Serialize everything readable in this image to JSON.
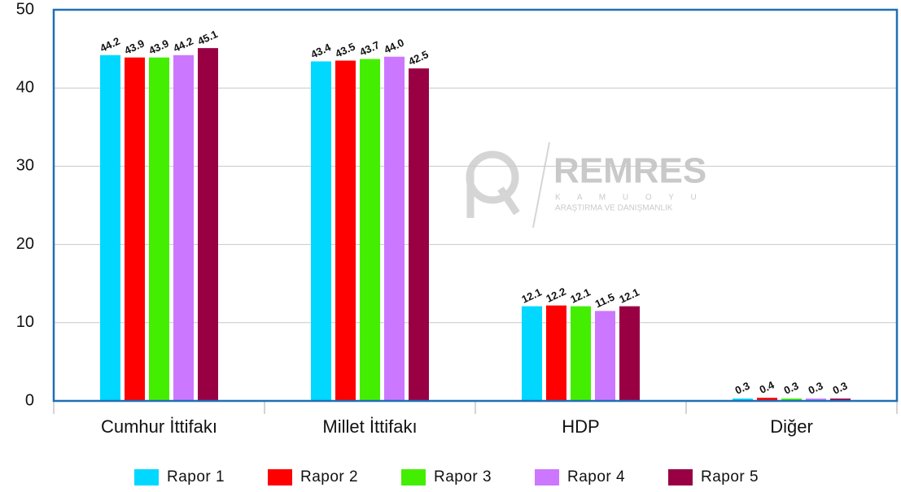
{
  "chart_data": {
    "type": "bar",
    "categories": [
      "Cumhur İttifakı",
      "Millet İttifakı",
      "HDP",
      "Diğer"
    ],
    "series": [
      {
        "name": "Rapor 1",
        "color": "#00d8ff",
        "values": [
          44.2,
          43.4,
          12.1,
          0.3
        ],
        "value_labels": [
          "44.2",
          "43.4",
          "12.1",
          "0.3"
        ]
      },
      {
        "name": "Rapor 2",
        "color": "#ff0000",
        "values": [
          43.9,
          43.5,
          12.2,
          0.4
        ],
        "value_labels": [
          "43.9",
          "43.5",
          "12.2",
          "0.4"
        ]
      },
      {
        "name": "Rapor 3",
        "color": "#44ee00",
        "values": [
          43.9,
          43.7,
          12.1,
          0.3
        ],
        "value_labels": [
          "43.9",
          "43.7",
          "12.1",
          "0.3"
        ]
      },
      {
        "name": "Rapor 4",
        "color": "#cc77ff",
        "values": [
          44.2,
          44.0,
          11.5,
          0.3
        ],
        "value_labels": [
          "44.2",
          "44.0",
          "11.5",
          "0.3"
        ]
      },
      {
        "name": "Rapor 5",
        "color": "#990044",
        "values": [
          45.1,
          42.5,
          12.1,
          0.3
        ],
        "value_labels": [
          "45.1",
          "42.5",
          "12.1",
          "0.3"
        ]
      }
    ],
    "ylim": [
      0,
      50
    ],
    "yticks": [
      0,
      10,
      20,
      30,
      40,
      50
    ],
    "grid": true,
    "legend": "bottom",
    "watermark": {
      "name": "REMRES",
      "line1": "K A M U O Y U",
      "line2": "ARAŞTIRMA VE DANIŞMANLIK"
    }
  }
}
